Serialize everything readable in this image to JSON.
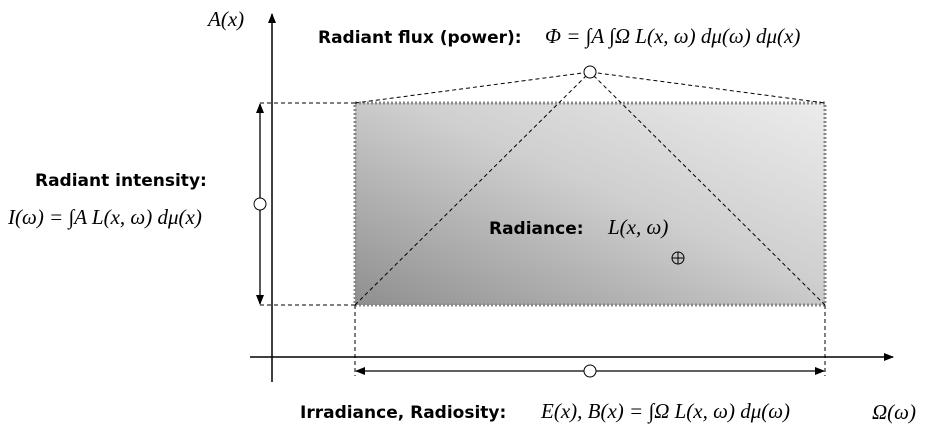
{
  "axes": {
    "y_label": "A(x)",
    "x_label": "Ω(ω)"
  },
  "radiant_flux": {
    "label": "Radiant flux (power):",
    "formula": "Φ = ∫A ∫Ω L(x, ω) dμ(ω) dμ(x)"
  },
  "radiant_intensity": {
    "label": "Radiant intensity:",
    "formula": "I(ω) = ∫A L(x, ω) dμ(x)"
  },
  "radiance": {
    "label": "Radiance:",
    "formula": "L(x, ω)"
  },
  "irradiance": {
    "label": "Irradiance, Radiosity:",
    "formula": "E(x), B(x) = ∫Ω L(x, ω) dμ(ω)"
  }
}
